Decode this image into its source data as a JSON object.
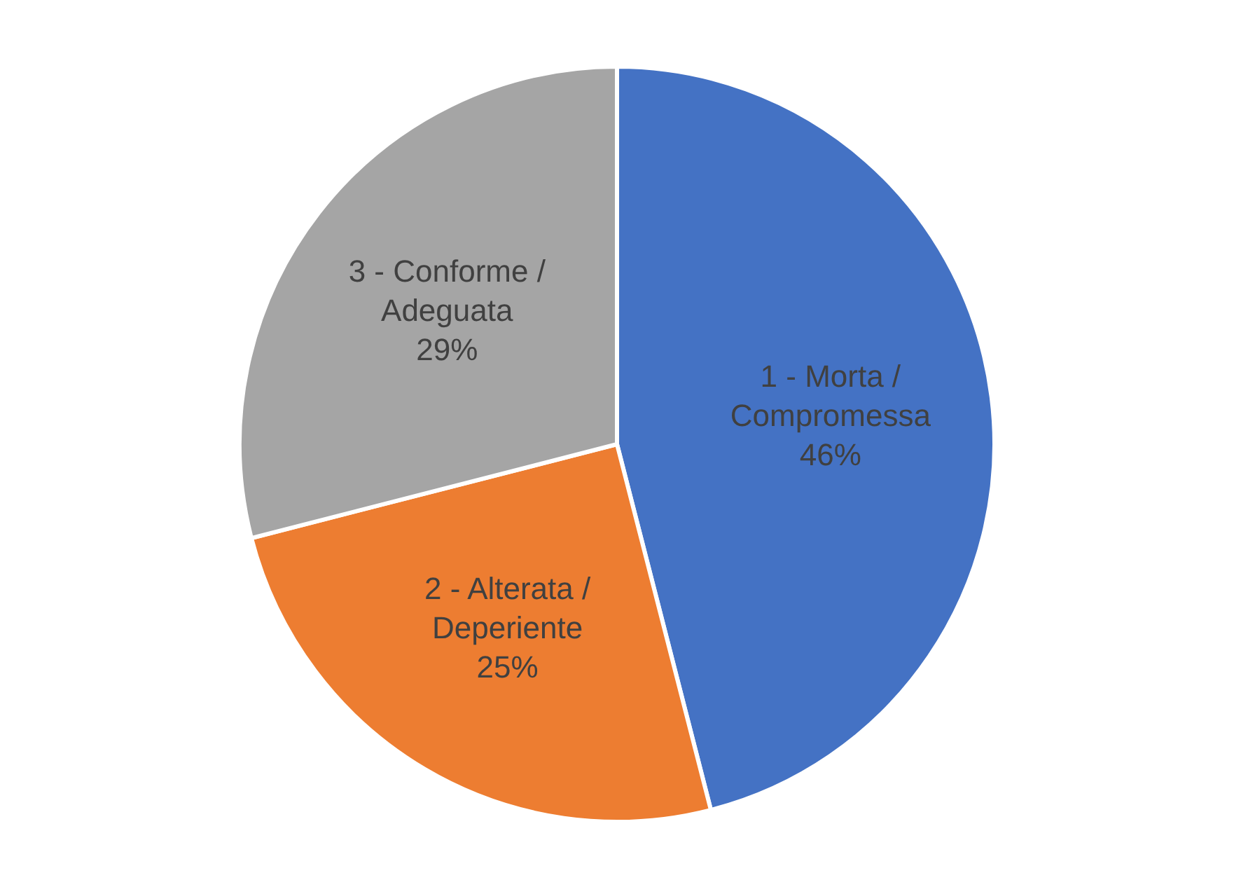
{
  "chart_data": {
    "type": "pie",
    "categories": [
      "1 - Morta / Compromessa",
      "2 - Alterata / Deperiente",
      "3 - Conforme / Adeguata"
    ],
    "values": [
      46,
      25,
      29
    ],
    "colors": [
      "#4472c4",
      "#ed7d31",
      "#a5a5a5"
    ],
    "value_labels": [
      "46%",
      "25%",
      "29%"
    ],
    "legend": false
  }
}
